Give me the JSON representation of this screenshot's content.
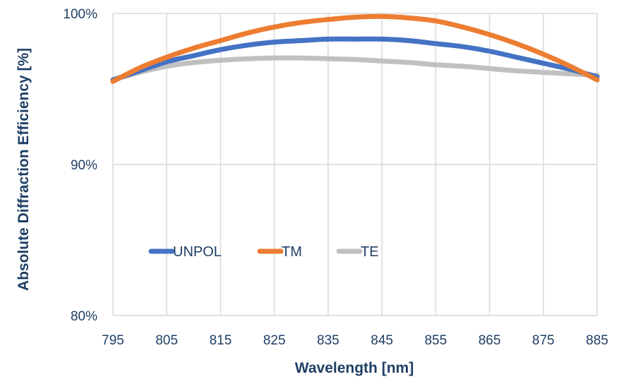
{
  "chart_data": {
    "type": "line",
    "xlabel": "Wavelength [nm]",
    "ylabel": "Absolute Diffraction Efficiency [%]",
    "xlim": [
      795,
      885
    ],
    "ylim": [
      80,
      100
    ],
    "x_ticks": [
      795,
      805,
      815,
      825,
      835,
      845,
      855,
      865,
      875,
      885
    ],
    "x_tick_labels": [
      "795",
      "805",
      "815",
      "825",
      "835",
      "845",
      "855",
      "865",
      "875",
      "885"
    ],
    "y_ticks": [
      80,
      90,
      100
    ],
    "y_tick_labels": [
      "80%",
      "90%",
      "100%"
    ],
    "grid": true,
    "legend_position": "center-left",
    "x": [
      795,
      800,
      805,
      810,
      815,
      820,
      825,
      830,
      835,
      840,
      845,
      850,
      855,
      860,
      865,
      870,
      875,
      880,
      885
    ],
    "series": [
      {
        "name": "UNPOL",
        "color": "#4472c4",
        "values": [
          95.6,
          96.2,
          96.8,
          97.2,
          97.6,
          97.9,
          98.1,
          98.2,
          98.3,
          98.3,
          98.3,
          98.2,
          98.0,
          97.8,
          97.5,
          97.1,
          96.7,
          96.3,
          95.8
        ]
      },
      {
        "name": "TM",
        "color": "#ed7d31",
        "values": [
          95.5,
          96.4,
          97.1,
          97.7,
          98.2,
          98.7,
          99.1,
          99.4,
          99.6,
          99.75,
          99.8,
          99.7,
          99.5,
          99.1,
          98.6,
          98.0,
          97.3,
          96.5,
          95.6
        ]
      },
      {
        "name": "TE",
        "color": "#c0c0c0",
        "values": [
          95.6,
          96.1,
          96.5,
          96.75,
          96.9,
          97.0,
          97.05,
          97.05,
          97.0,
          96.95,
          96.85,
          96.75,
          96.6,
          96.5,
          96.35,
          96.2,
          96.1,
          96.0,
          95.9
        ]
      }
    ]
  }
}
